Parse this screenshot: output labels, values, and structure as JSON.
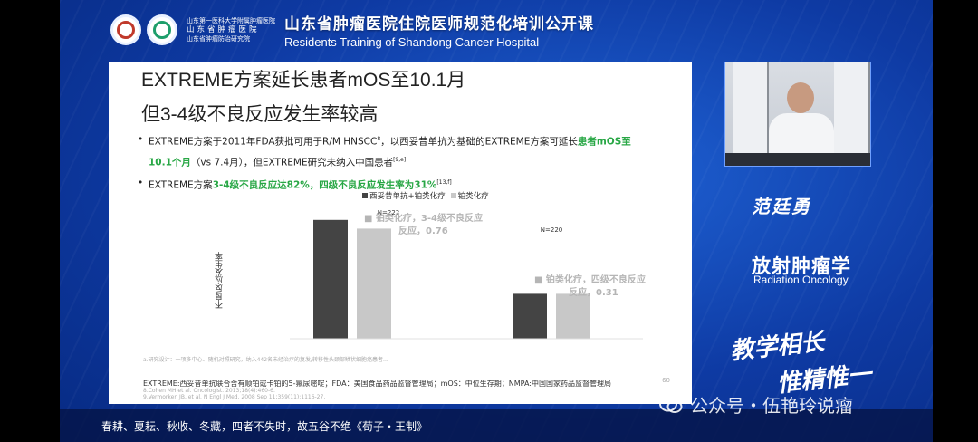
{
  "header": {
    "inst_line1": "山东第一医科大学附属肿瘤医院",
    "inst_line2": "山东省肿瘤医院",
    "inst_line3": "山东省肿瘤防治研究院",
    "title_cn": "山东省肿瘤医院住院医师规范化培训公开课",
    "title_en": "Residents Training of Shandong Cancer Hospital"
  },
  "slide": {
    "title1": "EXTREME方案延长患者mOS至10.1月",
    "title2": "但3-4级不良反应发生率较高",
    "bullet1_line1_a": "EXTREME方案于2011年FDA获批可用于R/M HNSCC",
    "bullet1_sup1": "8",
    "bullet1_line1_b": "，以西妥昔单抗为基础的EXTREME方案可延长",
    "bullet1_hl1": "患者mOS至",
    "bullet1_hl2": "10.1个月",
    "bullet1_line2": "（vs 7.4月），但EXTREME研究未纳入中国患者",
    "bullet1_sup2": "[9,e]",
    "bullet2_a": "EXTREME方案",
    "bullet2_hl": "3-4级不良反应达82%，四级不良反应发生率为31%",
    "bullet2_sup": "[13,f]",
    "footnote_small": "a.研究设计：一项多中心、随机对照研究，纳入442名未经治疗的复发/转移性头颈部鳞状细胞癌患者...",
    "footnote_main": "EXTREME:西妥昔单抗联合含有顺铂或卡铂的5-氟尿嘧啶；FDA：美国食品药品监督管理局；mOS：中位生存期；NMPA:中国国家药品监督管理局",
    "ref1": "8.Cohen MH,et al. Oncologist. 2013;18(4):460-6.",
    "ref2": "9.Vermorken JB, et al. N Engl J Med. 2008 Sep 11;359(11):1116-27.",
    "page": "60"
  },
  "chart_data": {
    "type": "bar",
    "ylabel": "不良反应发生率",
    "series": [
      {
        "name": "西妥昔单抗+铂类化疗",
        "color": "#444444",
        "values": [
          0.82,
          0.31
        ]
      },
      {
        "name": "铂类化疗",
        "color": "#c8c8c8",
        "values": [
          0.76,
          0.31
        ]
      }
    ],
    "group_labels": [
      "N=222",
      "N=220"
    ],
    "annotations": [
      "铂类化疗, 3-4级不良反应, 0.76",
      "铂类化疗, 四级不良反应, 0.31"
    ],
    "ylim": [
      0,
      1
    ]
  },
  "presenter": {
    "name": "范廷勇",
    "dept_cn": "放射肿瘤学",
    "dept_en": "Radiation Oncology"
  },
  "motto": {
    "line1": "教学相长",
    "line2": "惟精惟一"
  },
  "ticker": "春耕、夏耘、秋收、冬藏，四者不失时，故五谷不绝《荀子・王制》",
  "watermark": "公众号・伍艳玲说瘤"
}
